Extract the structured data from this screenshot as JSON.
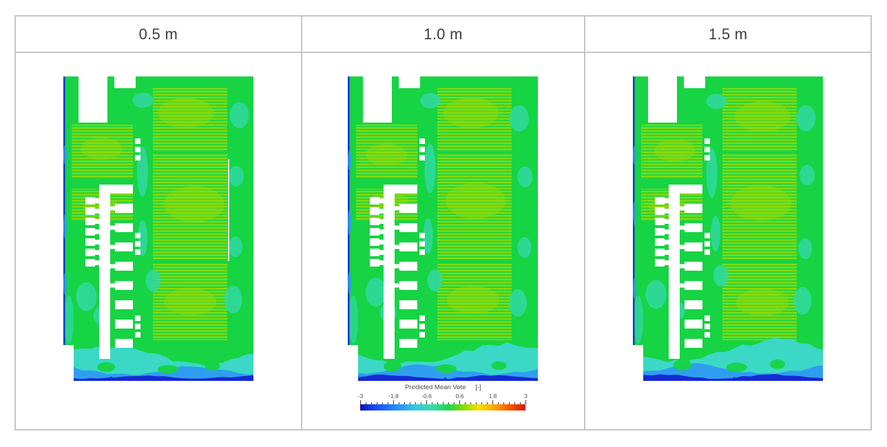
{
  "figure": {
    "panels": [
      {
        "label": "0.5 m"
      },
      {
        "label": "1.0 m"
      },
      {
        "label": "1.5 m"
      }
    ],
    "legend": {
      "title": "Predicted Mean Vote",
      "unit": "[-]",
      "tick_labels": [
        "-3",
        "-1.8",
        "-0.6",
        "0.6",
        "1.8",
        "3"
      ]
    }
  },
  "chart_data": {
    "type": "heatmap",
    "subtype": "cfd-contour-floor-plan-comparison",
    "variable": "Predicted Mean Vote",
    "unit": "[-]",
    "scale_range": [
      -3,
      3
    ],
    "legend_position": "below middle panel",
    "colorbar": {
      "orientation": "horizontal",
      "tick_values": [
        -3,
        -1.8,
        -0.6,
        0.6,
        1.8,
        3
      ],
      "stops": [
        {
          "value": -3.0,
          "color": "#1111b0"
        },
        {
          "value": -2.4,
          "color": "#1650ff"
        },
        {
          "value": -1.6,
          "color": "#2596f8"
        },
        {
          "value": -1.0,
          "color": "#38c8e0"
        },
        {
          "value": -0.4,
          "color": "#35dcaa"
        },
        {
          "value": 0.2,
          "color": "#1fd848"
        },
        {
          "value": 0.8,
          "color": "#8edc00"
        },
        {
          "value": 1.3,
          "color": "#f8e000"
        },
        {
          "value": 1.9,
          "color": "#ffa000"
        },
        {
          "value": 2.5,
          "color": "#fb4a00"
        },
        {
          "value": 3.0,
          "color": "#da1400"
        }
      ]
    },
    "panels": [
      {
        "height_label": "0.5 m",
        "has_colorbar": false,
        "render_hints": {
          "seed": 7,
          "cold_scale": 1.0,
          "thin_partition_line": true
        }
      },
      {
        "height_label": "1.0 m",
        "has_colorbar": true,
        "render_hints": {
          "seed": 23,
          "cold_scale": 1.05,
          "thin_partition_line": false
        }
      },
      {
        "height_label": "1.5 m",
        "has_colorbar": false,
        "render_hints": {
          "seed": 41,
          "cold_scale": 1.15,
          "thin_partition_line": false
        }
      }
    ],
    "qualitative_values": {
      "open_floor_interior": "PMV ≈ 0 to 0.6 (green)",
      "storage_rack_zones": "PMV ≈ 0.6 to 1.2 (striped yellow-green)",
      "scattered_patches": "PMV ≈ -0.6 to 0 (cyan)",
      "bottom_entrance_zone": "PMV ≈ -0.6 to -1.8 (cyan to light blue)",
      "bottom_and_left_wall_edges": "PMV ≈ -3 (dark blue)",
      "white_regions": "obstructions / excluded geometry (no data)"
    }
  },
  "colors": {
    "background": "#ffffff",
    "table_border": "#c6c6c6",
    "header_text": "#3d3d3d",
    "legend_text": "#4a4a4a",
    "plan_base_green": "#16d443",
    "rack_stripe_base": "#2ed438",
    "rack_stripe_line": "#a2de00",
    "cloud_yellow_green": "#9fdc00",
    "patch_cyan": "#32d9a2",
    "cold_cyan": "#3bd8c6",
    "cold_light_blue": "#2f9ef0",
    "cold_dark_blue": "#1729d3",
    "edge_dark_blue": "#1b33d8",
    "obstacle_white": "#ffffff"
  }
}
